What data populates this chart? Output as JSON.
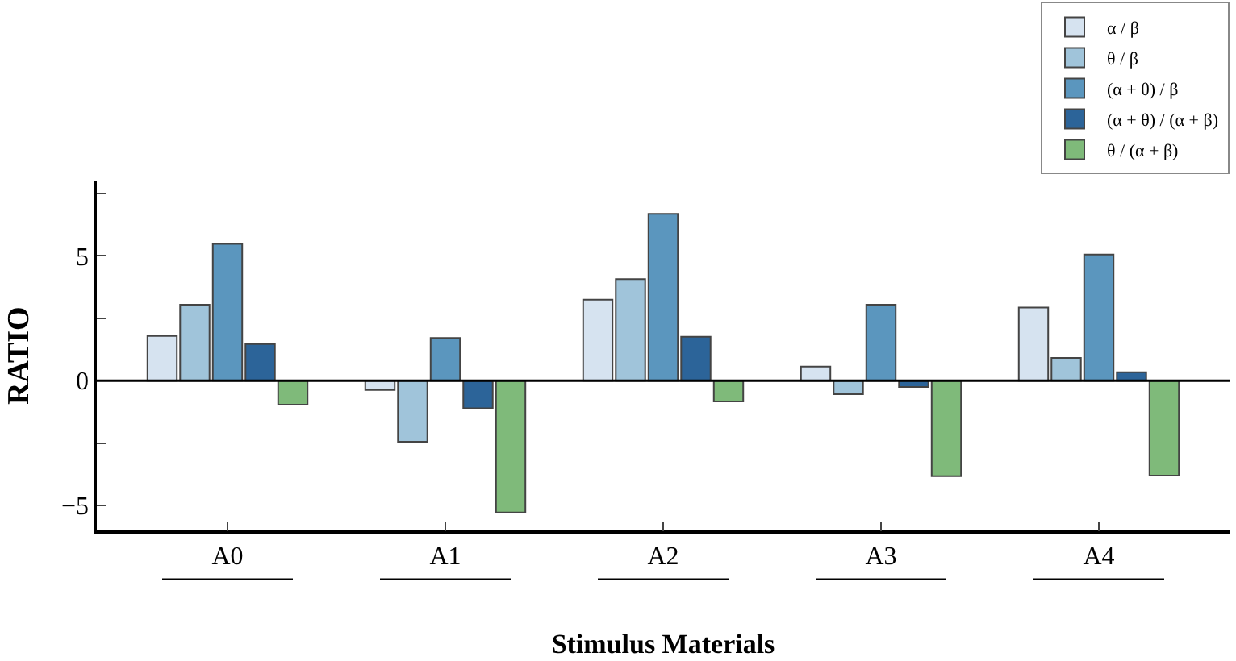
{
  "chart_data": {
    "type": "bar",
    "xlabel": "Stimulus Materials",
    "ylabel": "RATIO",
    "categories": [
      "A0",
      "A1",
      "A2",
      "A3",
      "A4"
    ],
    "series": [
      {
        "name": "α / β",
        "color": "#d6e3f0",
        "values": [
          1.79,
          -0.37,
          3.24,
          0.56,
          2.93
        ]
      },
      {
        "name": "θ / β",
        "color": "#a0c4da",
        "values": [
          3.04,
          -2.45,
          4.07,
          -0.54,
          0.91
        ]
      },
      {
        "name": "(α + θ) / β",
        "color": "#5b96be",
        "values": [
          5.48,
          1.71,
          6.68,
          3.04,
          5.05
        ]
      },
      {
        "name": "(α + θ) / (α + β)",
        "color": "#2c6499",
        "values": [
          1.47,
          -1.11,
          1.76,
          -0.25,
          0.34
        ]
      },
      {
        "name": "θ / (α + β)",
        "color": "#7fba7a",
        "values": [
          -0.96,
          -5.28,
          -0.83,
          -3.83,
          -3.8
        ]
      }
    ],
    "ylim": [
      -6,
      8
    ],
    "yticks": [
      {
        "value": -5,
        "label": "−5"
      },
      {
        "value": -2.5,
        "label": null
      },
      0,
      {
        "value": 2.5,
        "label": null
      },
      5,
      {
        "value": 7.5,
        "label": null
      }
    ],
    "ref_lines": [
      {
        "axis": "y",
        "value": 0,
        "color": "#000000"
      }
    ],
    "legend": "top right"
  }
}
